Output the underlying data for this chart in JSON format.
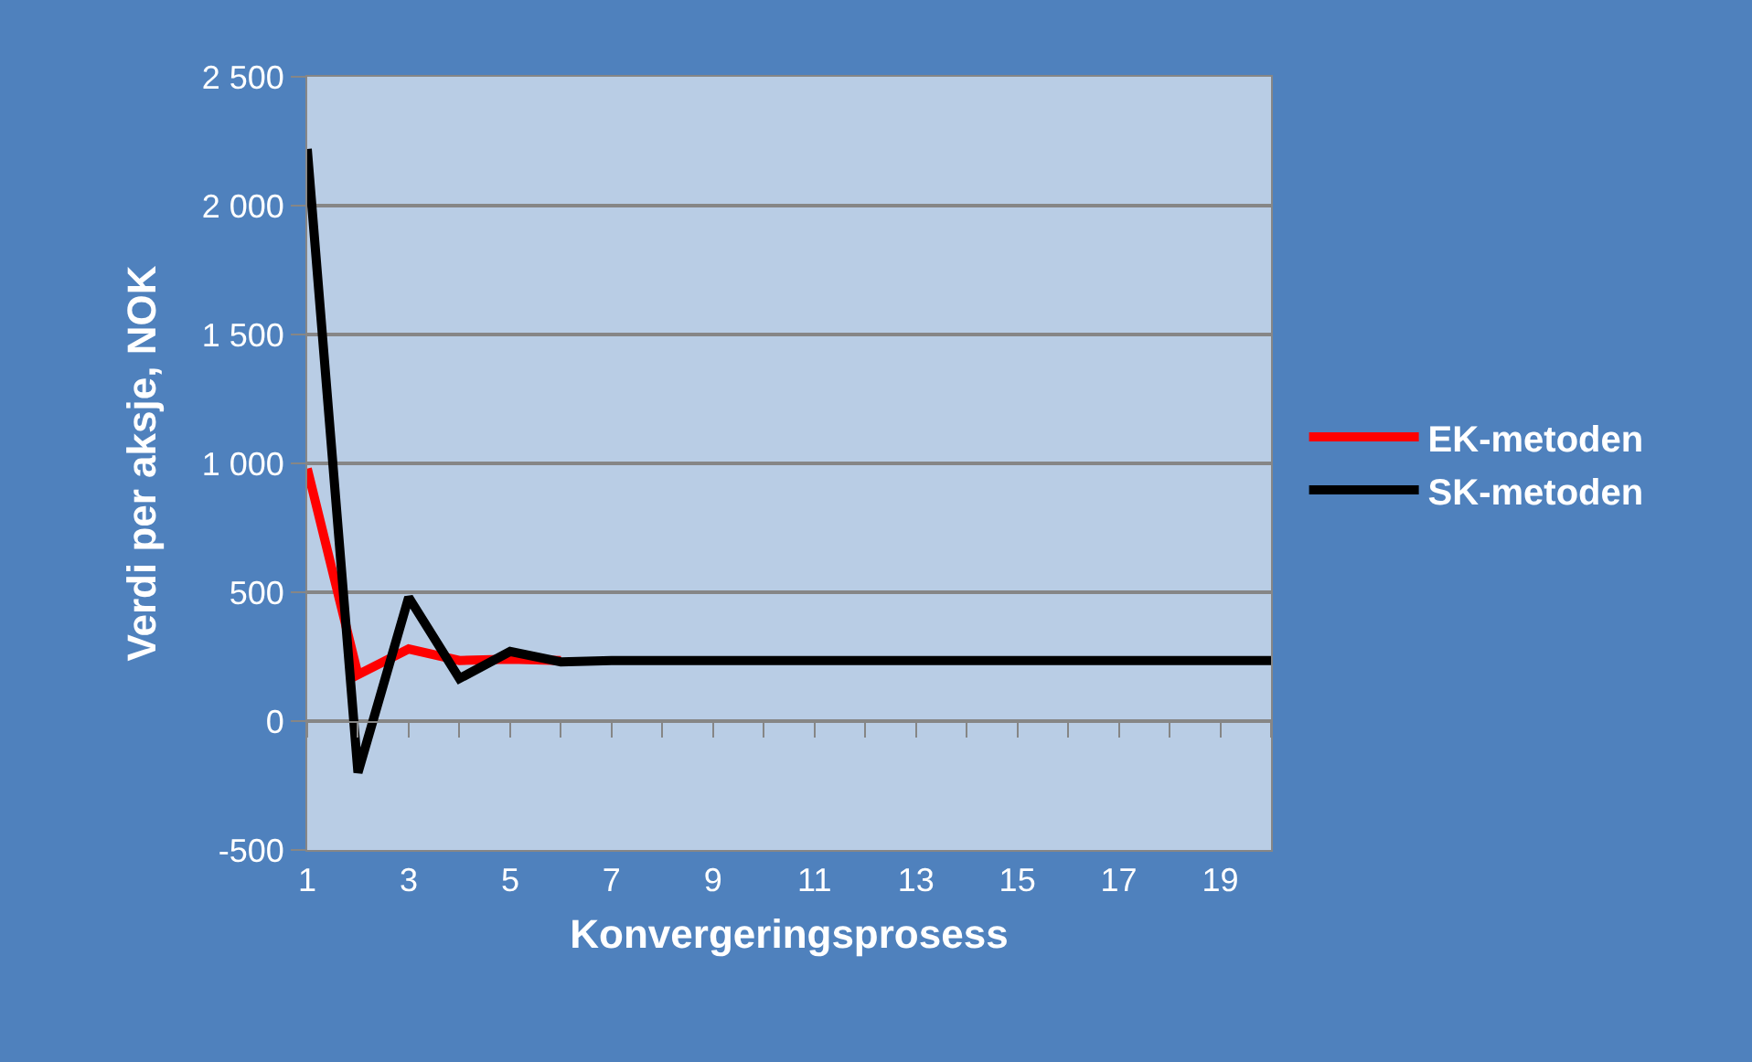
{
  "chart_data": {
    "type": "line",
    "xlabel": "Konvergeringsprosess",
    "ylabel": "Verdi per aksje, NOK",
    "x": [
      1,
      2,
      3,
      4,
      5,
      6,
      7,
      8,
      9,
      10,
      11,
      12,
      13,
      14,
      15,
      16,
      17,
      18,
      19,
      20
    ],
    "series": [
      {
        "name": "EK-metoden",
        "color": "#ff0000",
        "values": [
          980,
          180,
          280,
          235,
          240,
          235,
          null,
          null,
          null,
          null,
          null,
          null,
          null,
          null,
          null,
          null,
          null,
          null,
          null,
          null
        ]
      },
      {
        "name": "SK-metoden",
        "color": "#000000",
        "values": [
          2220,
          -200,
          480,
          165,
          270,
          230,
          235,
          235,
          235,
          235,
          235,
          235,
          235,
          235,
          235,
          235,
          235,
          235,
          235,
          235
        ]
      }
    ],
    "xlim": [
      1,
      20
    ],
    "xticks": [
      1,
      {
        "value": 2,
        "label": null
      },
      3,
      {
        "value": 4,
        "label": null
      },
      5,
      {
        "value": 6,
        "label": null
      },
      7,
      {
        "value": 8,
        "label": null
      },
      9,
      {
        "value": 10,
        "label": null
      },
      11,
      {
        "value": 12,
        "label": null
      },
      13,
      {
        "value": 14,
        "label": null
      },
      15,
      {
        "value": 16,
        "label": null
      },
      17,
      {
        "value": 18,
        "label": null
      },
      19,
      {
        "value": 20,
        "label": null
      }
    ],
    "ylim": [
      -500,
      2500
    ],
    "yticks": [
      -500,
      0,
      500,
      {
        "value": 1000,
        "label": "1 000"
      },
      {
        "value": 1500,
        "label": "1 500"
      },
      {
        "value": 2000,
        "label": "2 000"
      },
      {
        "value": 2500,
        "label": "2 500"
      }
    ],
    "grid": "y",
    "legend": "right",
    "marker": "none",
    "line_style": "solid"
  }
}
